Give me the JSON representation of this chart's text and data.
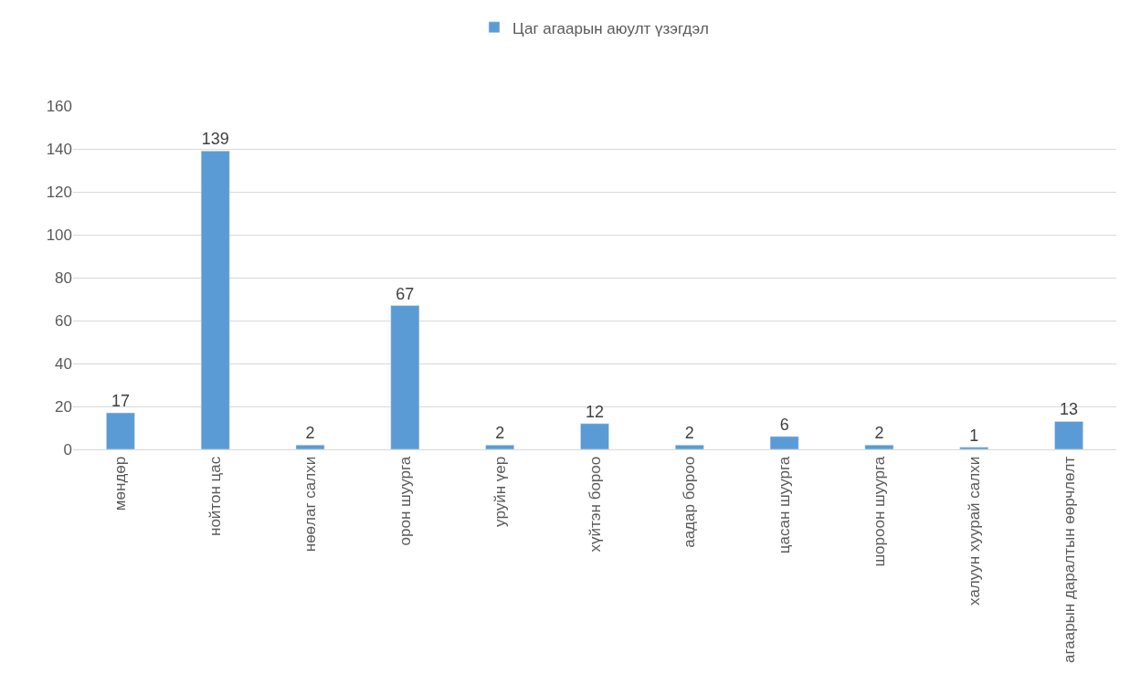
{
  "chart_data": {
    "type": "bar",
    "categories": [
      "мөндөр",
      "нойтон цас",
      "нөөлаг салхи",
      "орон шуурга",
      "уруйн үер",
      "хүйтэн бороо",
      "аадар бороо",
      "цасан шуурга",
      "шороон шуурга",
      "халуун хуурай салхи",
      "агаарын даралтын өөрчлөлт"
    ],
    "series": [
      {
        "name": "Цаг агаарын аюулт үзэгдэл",
        "color": "#5b9bd5",
        "values": [
          17,
          139,
          2,
          67,
          2,
          12,
          2,
          6,
          2,
          1,
          13
        ]
      }
    ],
    "ylim": [
      0,
      160
    ],
    "yticks": [
      0,
      20,
      40,
      60,
      80,
      100,
      120,
      140,
      160
    ],
    "grid": "y",
    "legend": "top",
    "data_labels": true
  }
}
